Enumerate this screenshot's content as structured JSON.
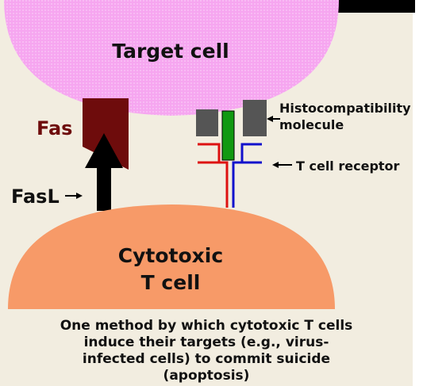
{
  "diagram": {
    "target_cell_label": "Target cell",
    "fas_label": "Fas",
    "fasl_label": "FasL",
    "histo_line1": "Histocompatibility",
    "histo_line2": "molecule",
    "tcr_label": "T cell receptor",
    "ctl_line1": "Cytotoxic",
    "ctl_line2": "T cell",
    "caption_lines": [
      "One method by which cytotoxic T cells",
      "induce their targets (e.g., virus-",
      "infected cells) to commit suicide",
      "(apoptosis)"
    ]
  },
  "colors": {
    "background": "#f2ede0",
    "target_cell": "#f6a6f0",
    "tcell": "#f79a68",
    "fas": "#6e0c0c",
    "fasl_arrow": "#000000",
    "mhc": "#555555",
    "peptide": "#119911",
    "tcr_alpha": "#dd1111",
    "tcr_beta": "#1111cc"
  }
}
